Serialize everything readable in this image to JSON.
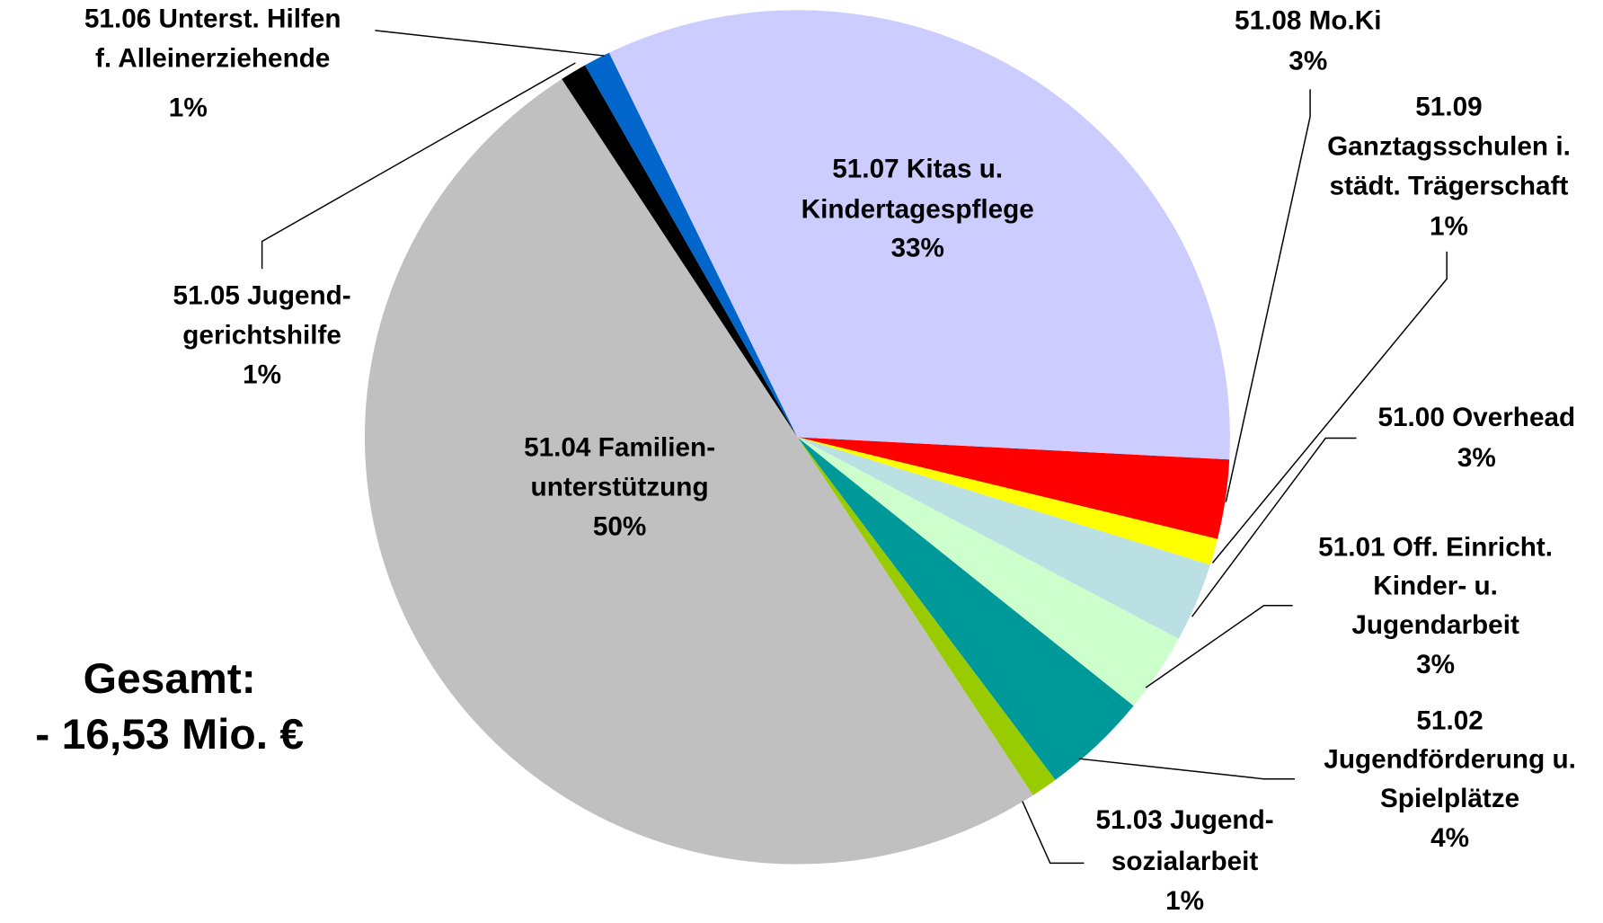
{
  "chart_data": {
    "type": "pie",
    "categories": [
      [
        "51.08 Mo.Ki"
      ],
      [
        "51.09",
        "Ganztagsschulen i.",
        "städt. Trägerschaft"
      ],
      [
        "51.00 Overhead"
      ],
      [
        "51.01 Off. Einricht.",
        "Kinder- u.",
        "Jugendarbeit"
      ],
      [
        "51.02",
        "Jugendförderung u.",
        "Spielplätze"
      ],
      [
        "51.03 Jugend-",
        "sozialarbeit"
      ],
      [
        "51.04 Familien-",
        "unterstützung"
      ],
      [
        "51.05 Jugend-",
        "gerichtshilfe"
      ],
      [
        "51.06 Unterst. Hilfen",
        "f. Alleinerziehende"
      ],
      [
        "51.07 Kitas u.",
        "Kindertagespflege"
      ]
    ],
    "values": [
      3,
      1,
      3,
      3,
      4,
      1,
      50,
      1,
      1,
      33
    ],
    "value_labels": [
      "3%",
      "1%",
      "3%",
      "3%",
      "4%",
      "1%",
      "50%",
      "1%",
      "1%",
      "33%"
    ],
    "colors": [
      "#FF0000",
      "#FFFF00",
      "#BBE0E3",
      "#CCFFCC",
      "#009999",
      "#99CC00",
      "#C0C0C0",
      "#000000",
      "#0066CC",
      "#CCCCFF"
    ],
    "total_label": [
      "Gesamt:",
      "- 16,53  Mio. €"
    ]
  }
}
